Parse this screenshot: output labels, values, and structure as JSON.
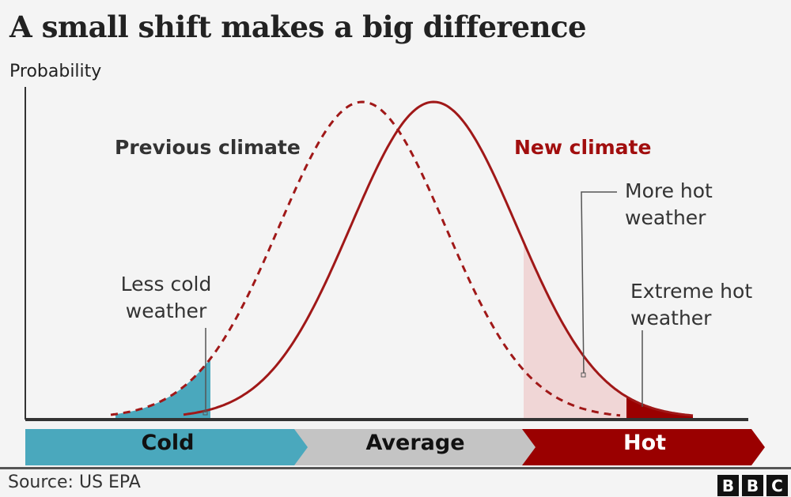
{
  "title": "A small shift makes a big difference",
  "y_axis_label": "Probability",
  "series_labels": {
    "previous": "Previous climate",
    "new": "New climate"
  },
  "annotations": {
    "less_cold": [
      "Less cold",
      "weather"
    ],
    "more_hot": [
      "More hot",
      "weather"
    ],
    "extreme_hot": [
      "Extreme hot",
      "weather"
    ]
  },
  "bands": [
    {
      "label": "Cold",
      "color": "#4aa8bd",
      "text_color": "#111111"
    },
    {
      "label": "Average",
      "color": "#c4c4c4",
      "text_color": "#111111"
    },
    {
      "label": "Hot",
      "color": "#9a0000",
      "text_color": "#ffffff"
    }
  ],
  "footer": {
    "source": "Source: US EPA",
    "logo": [
      "B",
      "B",
      "C"
    ]
  },
  "colors": {
    "curve": "#a01818",
    "cold_fill": "#4aa8bd",
    "more_hot_fill": "#f0d6d6",
    "extreme_hot_fill": "#9a0000",
    "axis": "#333333"
  },
  "chart_data": {
    "type": "area",
    "title": "A small shift makes a big difference",
    "ylabel": "Probability",
    "xlabel": "",
    "x_categories": [
      "Cold",
      "Average",
      "Hot"
    ],
    "series": [
      {
        "name": "Previous climate",
        "style": "dashed",
        "distribution": "normal",
        "mean_relative": 0.0,
        "sd_relative": 1.0
      },
      {
        "name": "New climate",
        "style": "solid",
        "distribution": "normal",
        "mean_relative": 0.86,
        "sd_relative": 1.0
      }
    ],
    "shaded_regions": [
      {
        "name": "Less cold weather",
        "under": "Previous climate",
        "range": "cold tail"
      },
      {
        "name": "More hot weather",
        "under": "New climate",
        "range": "hot tail"
      },
      {
        "name": "Extreme hot weather",
        "under": "New climate",
        "range": "extreme hot tail"
      }
    ],
    "grid": false,
    "source": "US EPA"
  }
}
